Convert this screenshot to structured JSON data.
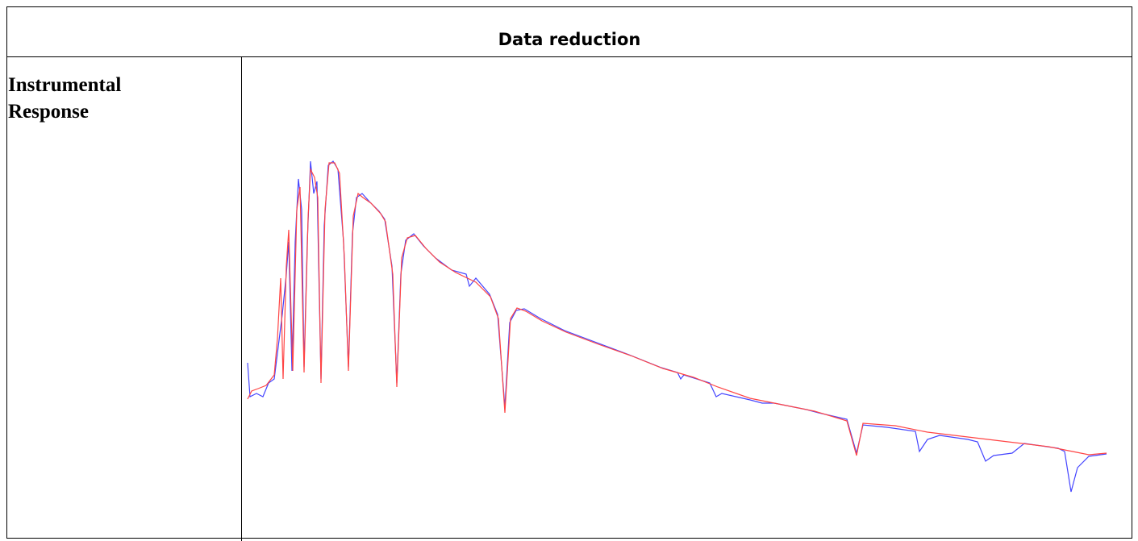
{
  "header": {
    "title": "Data reduction"
  },
  "table": {
    "rows": [
      [
        "Instrumental Response"
      ]
    ]
  }
}
